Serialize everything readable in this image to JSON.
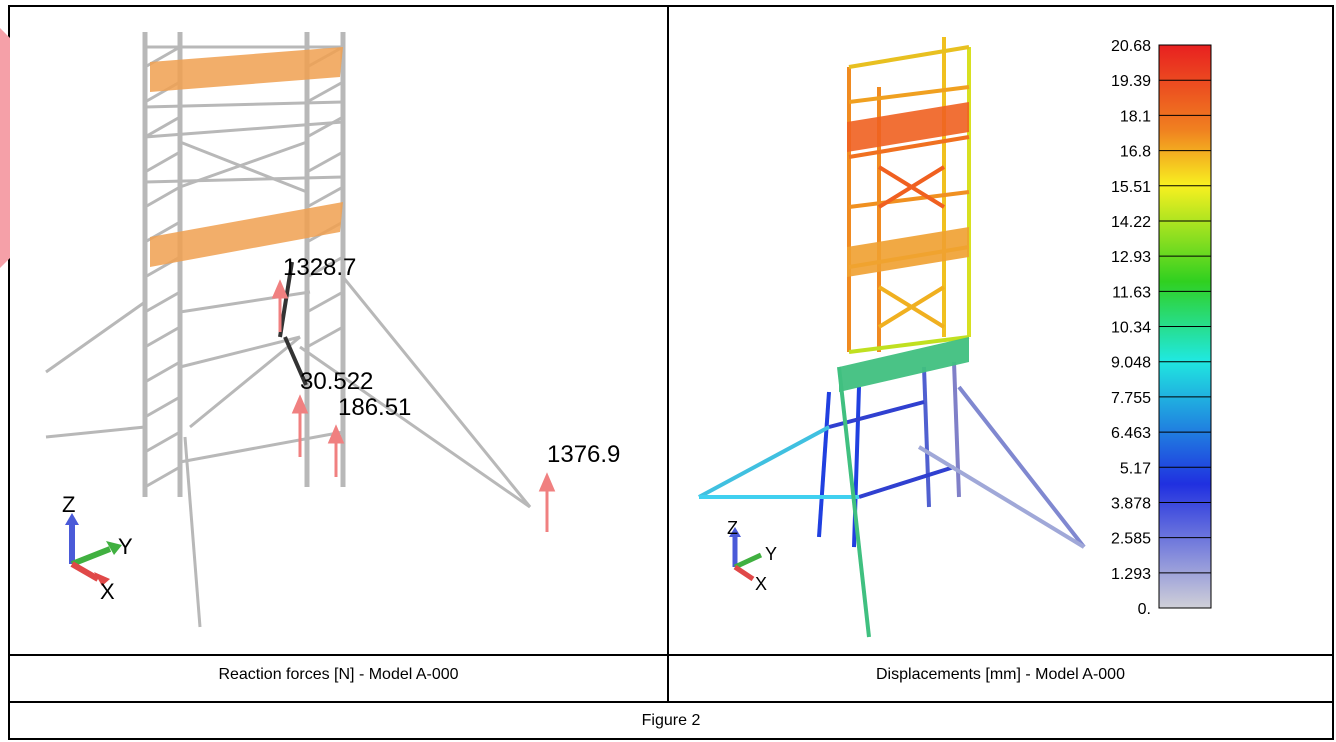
{
  "left_panel": {
    "caption": "Reaction forces [N] - Model A-000",
    "reactions": [
      "1328.7",
      "30.522",
      "186.51",
      "1376.9"
    ],
    "axes": {
      "z": "Z",
      "y": "Y",
      "x": "X"
    }
  },
  "right_panel": {
    "caption": "Displacements [mm] - Model A-000",
    "colorbar_ticks": [
      "20.68",
      "19.39",
      "18.1",
      "16.8",
      "15.51",
      "14.22",
      "12.93",
      "11.63",
      "10.34",
      "9.048",
      "7.755",
      "6.463",
      "5.17",
      "3.878",
      "2.585",
      "1.293",
      "0."
    ],
    "axes": {
      "z": "Z",
      "y": "Y",
      "x": "X"
    }
  },
  "figure_caption": "Figure 2",
  "colors": {
    "structure_grey": "#b8b8b8",
    "platform_orange": "#f0a050",
    "reaction_arrow": "#f08080",
    "accent_pink": "#f5a0a8"
  }
}
